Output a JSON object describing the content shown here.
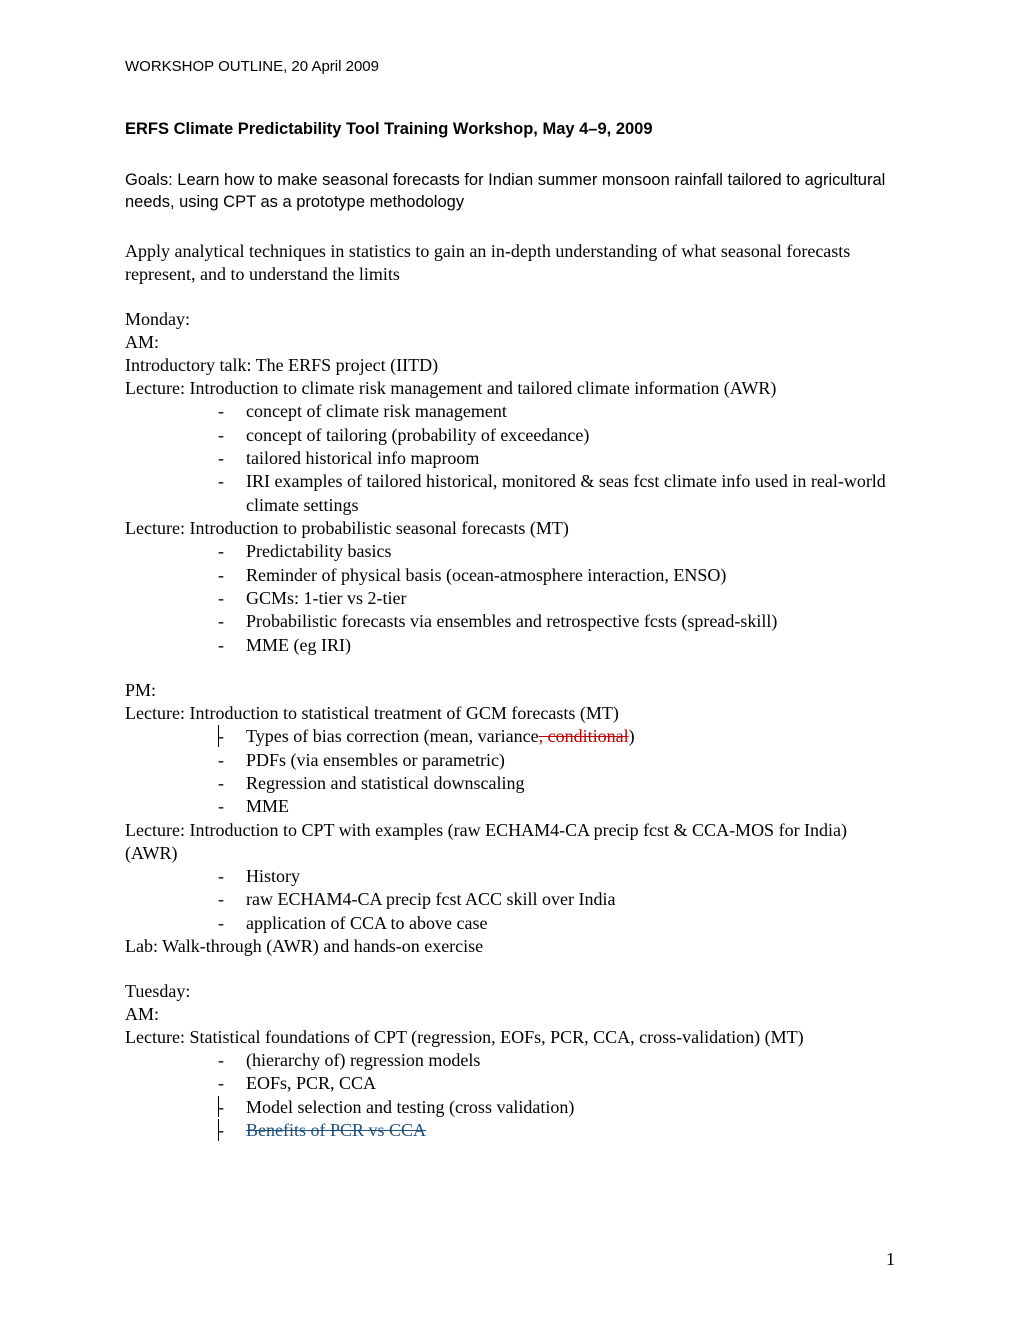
{
  "header": "WORKSHOP OUTLINE, 20 April 2009",
  "title": "ERFS Climate Predictability Tool Training Workshop, May 4–9, 2009",
  "goals": "Goals: Learn how to make seasonal forecasts for Indian summer monsoon rainfall tailored to agricultural needs, using CPT as a prototype methodology",
  "intro_para": "Apply analytical techniques in statistics to gain an in-depth understanding of what seasonal forecasts represent, and to understand the limits",
  "monday": {
    "day": "Monday:",
    "am": "AM:",
    "intro_talk": "Introductory talk:  The ERFS project (IITD)",
    "lecture1": "Lecture: Introduction to climate risk management and tailored climate information (AWR)",
    "lecture1_bullets": [
      "concept of climate risk management",
      "concept of tailoring (probability of exceedance)",
      "tailored historical info maproom",
      "IRI examples of tailored historical, monitored & seas fcst climate info used in real-world climate settings"
    ],
    "lecture2": "Lecture: Introduction to probabilistic seasonal forecasts (MT)",
    "lecture2_bullets": [
      "Predictability basics",
      "Reminder of physical basis (ocean-atmosphere interaction, ENSO)",
      "GCMs: 1-tier vs 2-tier",
      "Probabilistic forecasts via ensembles and retrospective fcsts (spread-skill)",
      "MME (eg IRI)"
    ],
    "pm": "PM:",
    "lecture3": "Lecture: Introduction to statistical treatment of GCM forecasts  (MT)",
    "lecture3_bullets_pre": "Types of bias correction (mean, variance",
    "lecture3_bullets_strike": ", conditional",
    "lecture3_bullets_post": ")",
    "lecture3_rest": [
      "PDFs (via ensembles or parametric)",
      "Regression and statistical downscaling",
      "MME"
    ],
    "lecture4": "Lecture: Introduction to CPT with examples (raw ECHAM4-CA precip fcst & CCA-MOS for India) (AWR)",
    "lecture4_bullets": [
      "History",
      "raw ECHAM4-CA precip fcst ACC skill over India",
      "application of CCA to above case"
    ],
    "lab": "Lab: Walk-through (AWR) and hands-on exercise"
  },
  "tuesday": {
    "day": "Tuesday:",
    "am": "AM:",
    "lecture1": "Lecture: Statistical foundations of CPT (regression, EOFs, PCR, CCA, cross-validation) (MT)",
    "bullets": [
      "(hierarchy of) regression models",
      "EOFs, PCR, CCA",
      "Model selection and testing (cross validation)"
    ],
    "strike_bullet": "Benefits of PCR vs CCA"
  },
  "page_number": "1"
}
